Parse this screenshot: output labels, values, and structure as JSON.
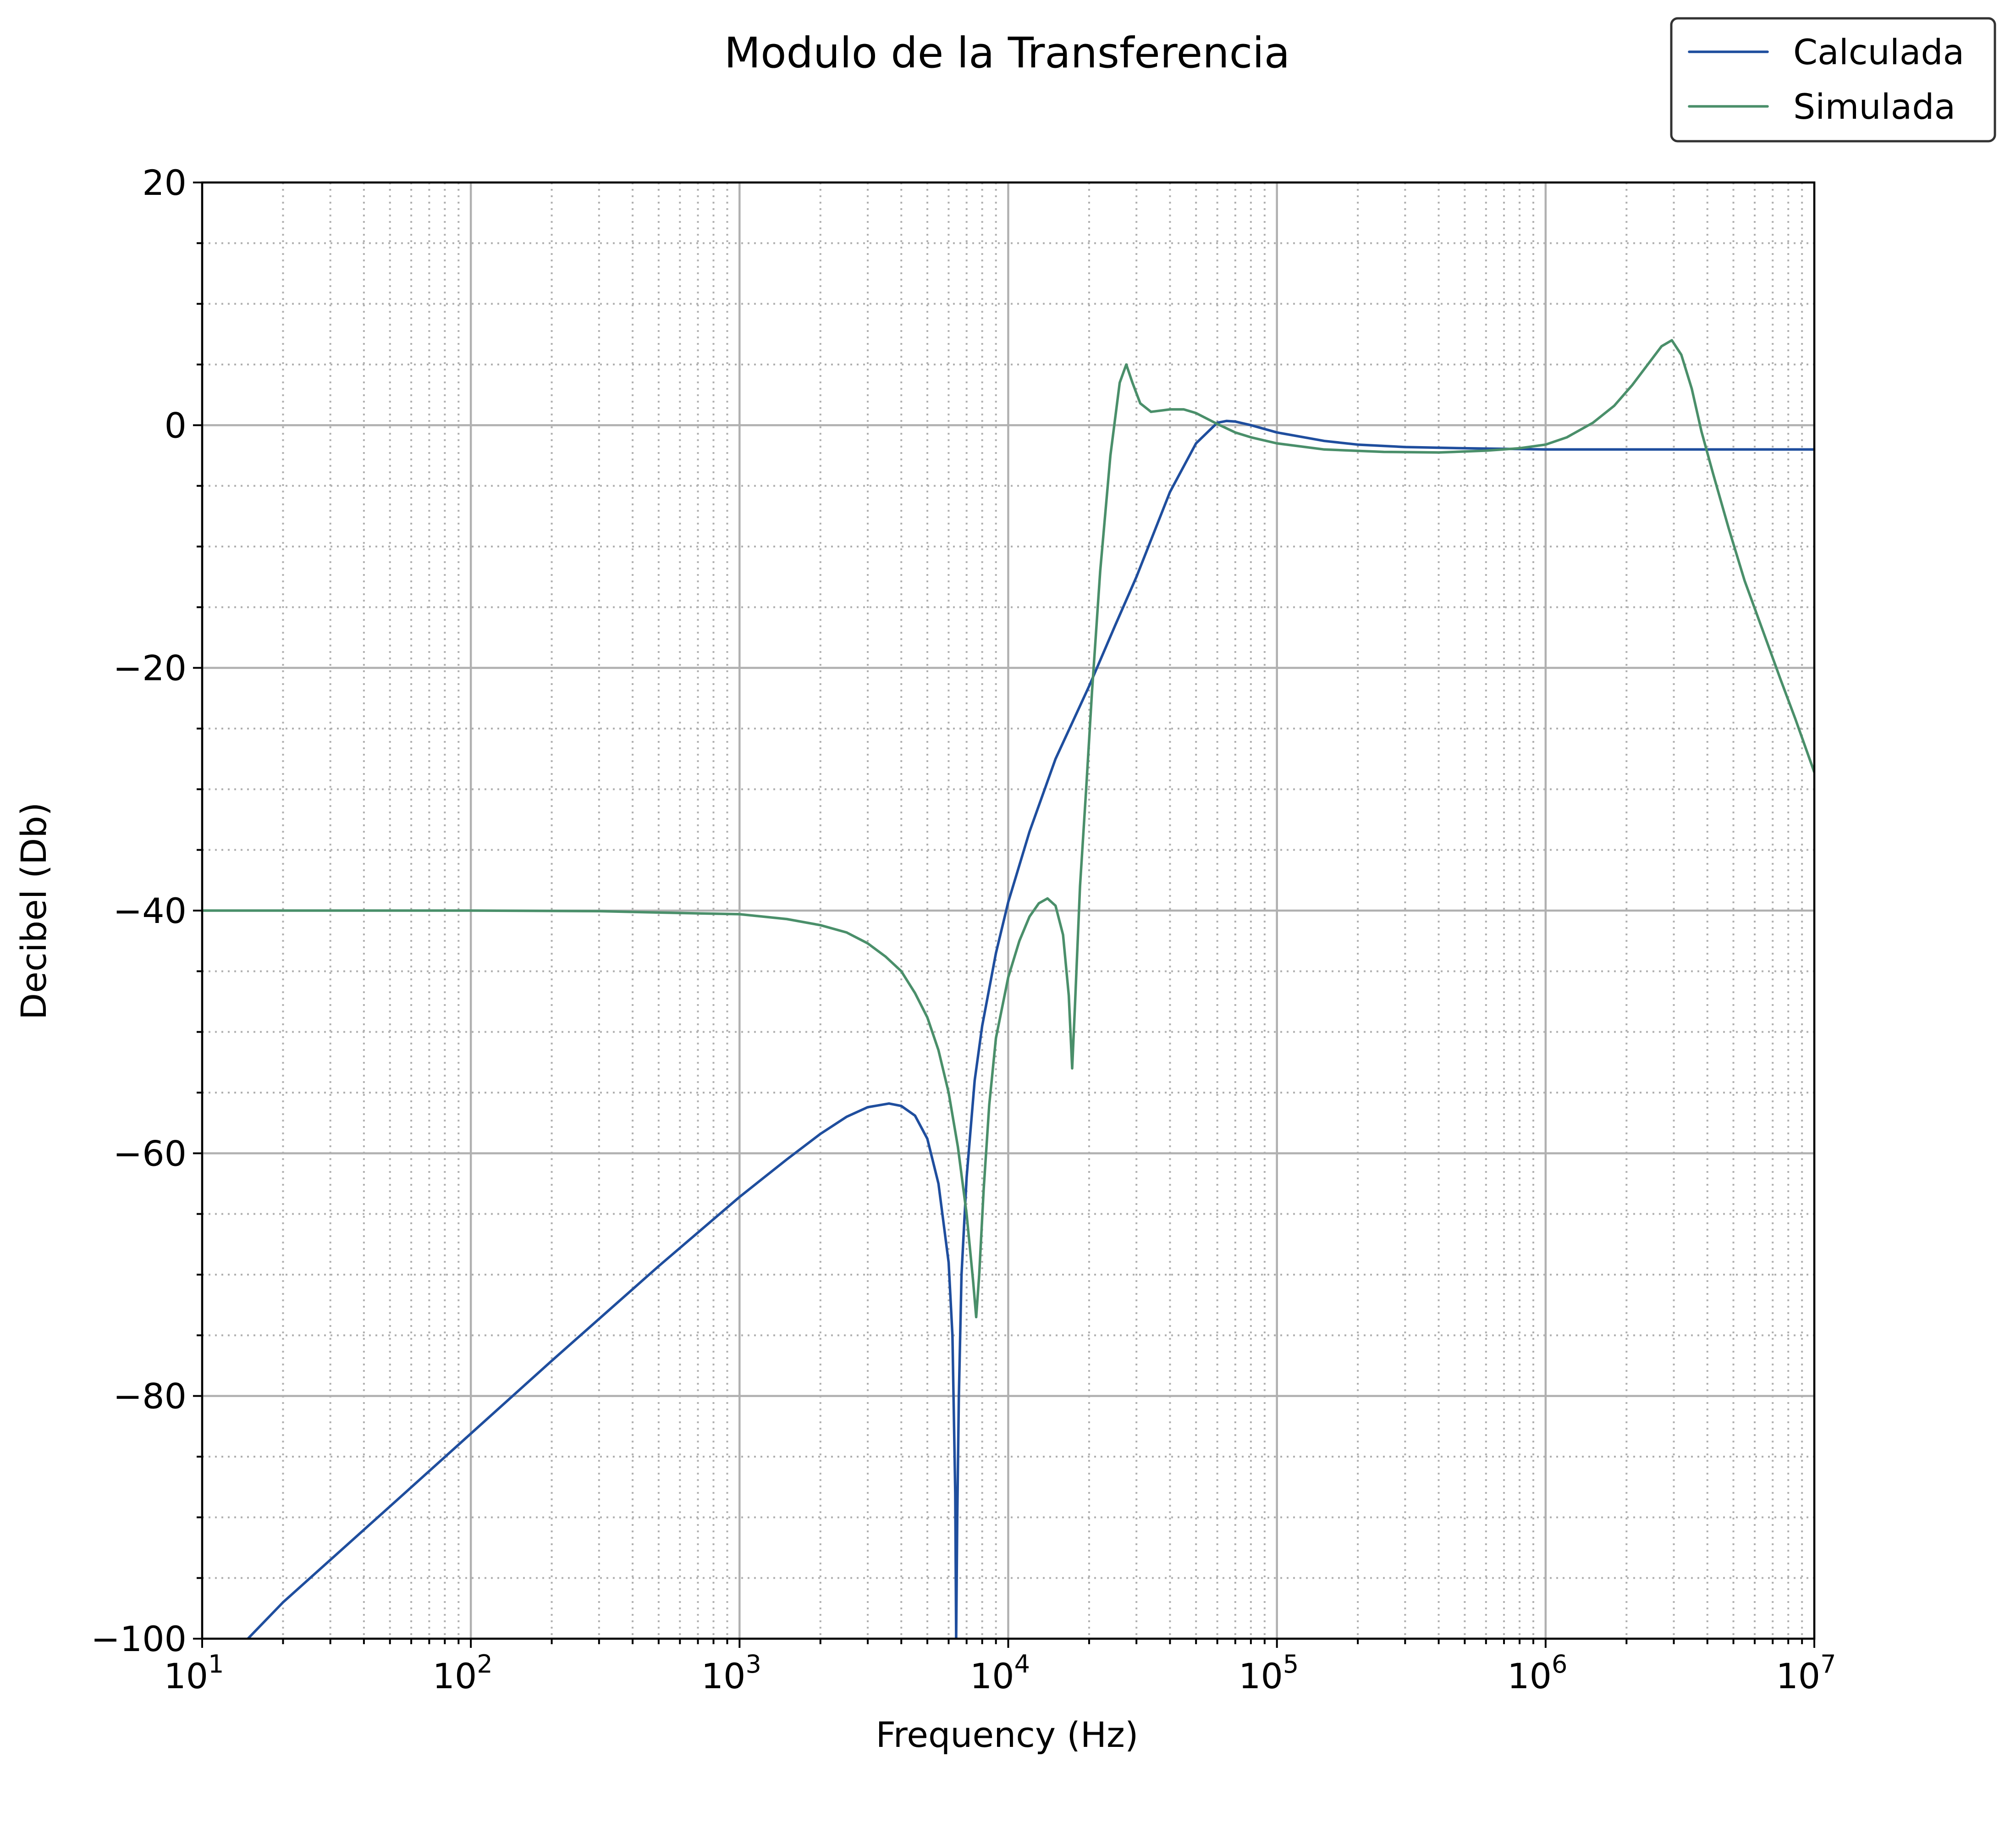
{
  "chart_data": {
    "type": "line",
    "title": "Modulo de la Transferencia",
    "xlabel": "Frequency (Hz)",
    "ylabel": "Decibel (Db)",
    "xscale": "log",
    "xlim": [
      10,
      10000000
    ],
    "ylim": [
      -100,
      20
    ],
    "grid": {
      "major": true,
      "minor": true
    },
    "legend_position": "top-right",
    "x_tick_labels": [
      {
        "base": "10",
        "exp": "1"
      },
      {
        "base": "10",
        "exp": "2"
      },
      {
        "base": "10",
        "exp": "3"
      },
      {
        "base": "10",
        "exp": "4"
      },
      {
        "base": "10",
        "exp": "5"
      },
      {
        "base": "10",
        "exp": "6"
      },
      {
        "base": "10",
        "exp": "7"
      }
    ],
    "y_tick_labels": [
      "20",
      "0",
      "−20",
      "−40",
      "−60",
      "−80",
      "−100"
    ],
    "series": [
      {
        "name": "Calculada",
        "color": "#1f4e9e",
        "points": [
          [
            10,
            -107.1
          ],
          [
            14.8,
            -100
          ],
          [
            20,
            -97.0
          ],
          [
            50,
            -89.1
          ],
          [
            100,
            -83.1
          ],
          [
            200,
            -77.1
          ],
          [
            500,
            -69.3
          ],
          [
            1000,
            -63.6
          ],
          [
            1500,
            -60.5
          ],
          [
            2000,
            -58.4
          ],
          [
            2500,
            -57.0
          ],
          [
            3000,
            -56.2
          ],
          [
            3600,
            -55.9
          ],
          [
            4000,
            -56.1
          ],
          [
            4500,
            -56.9
          ],
          [
            5000,
            -58.8
          ],
          [
            5500,
            -62.5
          ],
          [
            6000,
            -69.0
          ],
          [
            6200,
            -75.0
          ],
          [
            6350,
            -88.0
          ],
          [
            6400,
            -100
          ],
          [
            6460,
            -90.0
          ],
          [
            6550,
            -80.0
          ],
          [
            6700,
            -70.0
          ],
          [
            7000,
            -62.0
          ],
          [
            7500,
            -54.0
          ],
          [
            8000,
            -49.5
          ],
          [
            9000,
            -43.5
          ],
          [
            10000,
            -39.3
          ],
          [
            12000,
            -33.5
          ],
          [
            15000,
            -27.5
          ],
          [
            20000,
            -21.5
          ],
          [
            25000,
            -16.5
          ],
          [
            30000,
            -12.5
          ],
          [
            40000,
            -5.5
          ],
          [
            50000,
            -1.5
          ],
          [
            60000,
            0.2
          ],
          [
            65000,
            0.35
          ],
          [
            70000,
            0.3
          ],
          [
            80000,
            0.0
          ],
          [
            100000,
            -0.6
          ],
          [
            150000,
            -1.3
          ],
          [
            200000,
            -1.6
          ],
          [
            300000,
            -1.8
          ],
          [
            500000,
            -1.9
          ],
          [
            1000000,
            -2.0
          ],
          [
            3000000,
            -2.0
          ],
          [
            10000000,
            -2.0
          ]
        ]
      },
      {
        "name": "Simulada",
        "color": "#4a8f6a",
        "points": [
          [
            10,
            -40.0
          ],
          [
            100,
            -40.0
          ],
          [
            300,
            -40.05
          ],
          [
            600,
            -40.2
          ],
          [
            1000,
            -40.3
          ],
          [
            1500,
            -40.7
          ],
          [
            2000,
            -41.2
          ],
          [
            2500,
            -41.8
          ],
          [
            3000,
            -42.7
          ],
          [
            3500,
            -43.8
          ],
          [
            4000,
            -45.0
          ],
          [
            4500,
            -46.8
          ],
          [
            5000,
            -48.8
          ],
          [
            5500,
            -51.5
          ],
          [
            6000,
            -55.0
          ],
          [
            6500,
            -59.5
          ],
          [
            7000,
            -65.0
          ],
          [
            7400,
            -70.5
          ],
          [
            7600,
            -73.5
          ],
          [
            7800,
            -70.0
          ],
          [
            8100,
            -63.0
          ],
          [
            8500,
            -56.0
          ],
          [
            9000,
            -50.5
          ],
          [
            10000,
            -45.5
          ],
          [
            11000,
            -42.5
          ],
          [
            12000,
            -40.5
          ],
          [
            13000,
            -39.4
          ],
          [
            14000,
            -39.0
          ],
          [
            15000,
            -39.6
          ],
          [
            16000,
            -42.0
          ],
          [
            16800,
            -47.0
          ],
          [
            17300,
            -53.0
          ],
          [
            17700,
            -48.0
          ],
          [
            18500,
            -38.0
          ],
          [
            19500,
            -30.0
          ],
          [
            20500,
            -22.0
          ],
          [
            22000,
            -12.0
          ],
          [
            24000,
            -2.5
          ],
          [
            26000,
            3.5
          ],
          [
            27500,
            5.0
          ],
          [
            29000,
            3.5
          ],
          [
            31000,
            1.8
          ],
          [
            34000,
            1.1
          ],
          [
            40000,
            1.3
          ],
          [
            45000,
            1.3
          ],
          [
            50000,
            1.0
          ],
          [
            60000,
            0.1
          ],
          [
            70000,
            -0.6
          ],
          [
            80000,
            -1.0
          ],
          [
            100000,
            -1.5
          ],
          [
            150000,
            -2.0
          ],
          [
            250000,
            -2.2
          ],
          [
            400000,
            -2.25
          ],
          [
            600000,
            -2.1
          ],
          [
            800000,
            -1.9
          ],
          [
            1000000,
            -1.6
          ],
          [
            1200000,
            -1.0
          ],
          [
            1500000,
            0.2
          ],
          [
            1800000,
            1.6
          ],
          [
            2100000,
            3.3
          ],
          [
            2400000,
            5.0
          ],
          [
            2700000,
            6.5
          ],
          [
            2950000,
            7.0
          ],
          [
            3200000,
            5.8
          ],
          [
            3500000,
            3.0
          ],
          [
            3800000,
            -0.5
          ],
          [
            4200000,
            -4.0
          ],
          [
            4800000,
            -8.5
          ],
          [
            5500000,
            -12.8
          ],
          [
            6500000,
            -17.2
          ],
          [
            7500000,
            -21.0
          ],
          [
            8500000,
            -24.2
          ],
          [
            10000000,
            -28.6
          ]
        ]
      }
    ]
  }
}
